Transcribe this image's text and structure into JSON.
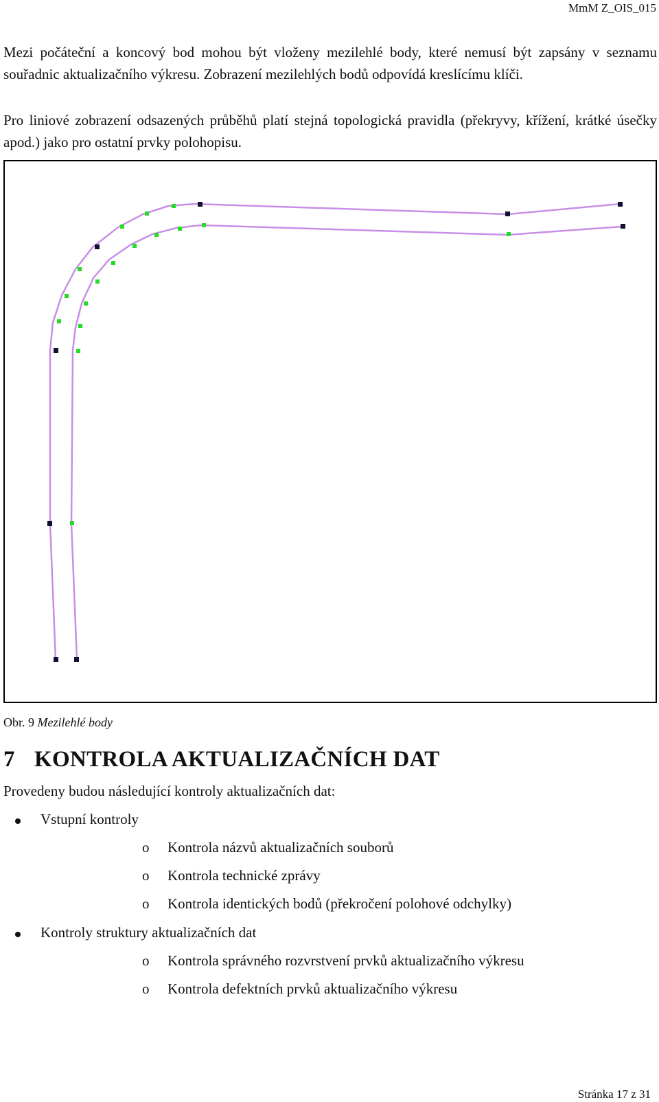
{
  "header": {
    "doc_code": "MmM Z_OIS_015"
  },
  "paragraphs": [
    "Mezi počáteční a koncový bod mohou být vloženy mezilehlé body, které nemusí být zapsány v seznamu souřadnic aktualizačního výkresu. Zobrazení mezilehlých bodů odpovídá kreslícímu klíči.",
    "Pro liniové zobrazení odsazených průběhů platí stejná topologická pravidla (překryvy, křížení, krátké úsečky apod.) jako pro ostatní prvky polohopisu."
  ],
  "figure": {
    "line_color": "#c88ee6",
    "intermediate_point_color": "#22dd22",
    "endpoint_color": "#111133"
  },
  "caption": {
    "prefix": "Obr.",
    "number": "9",
    "text": "Mezilehlé body"
  },
  "section": {
    "number": "7",
    "title": "KONTROLA AKTUALIZAČNÍCH DAT"
  },
  "intro": "Provedeny budou následující kontroly aktualizačních dat:",
  "bullets": [
    {
      "label": "Vstupní kontroly",
      "items": [
        "Kontrola názvů aktualizačních souborů",
        "Kontrola technické zprávy",
        "Kontrola identických bodů (překročení polohové odchylky)"
      ]
    },
    {
      "label": "Kontroly struktury aktualizačních dat",
      "items": [
        "Kontrola správného rozvrstvení prvků aktualizačního výkresu",
        "Kontrola defektních prvků aktualizačního výkresu"
      ]
    }
  ],
  "sub_marker": "o",
  "footer": {
    "page": "Stránka 17 z 31"
  }
}
